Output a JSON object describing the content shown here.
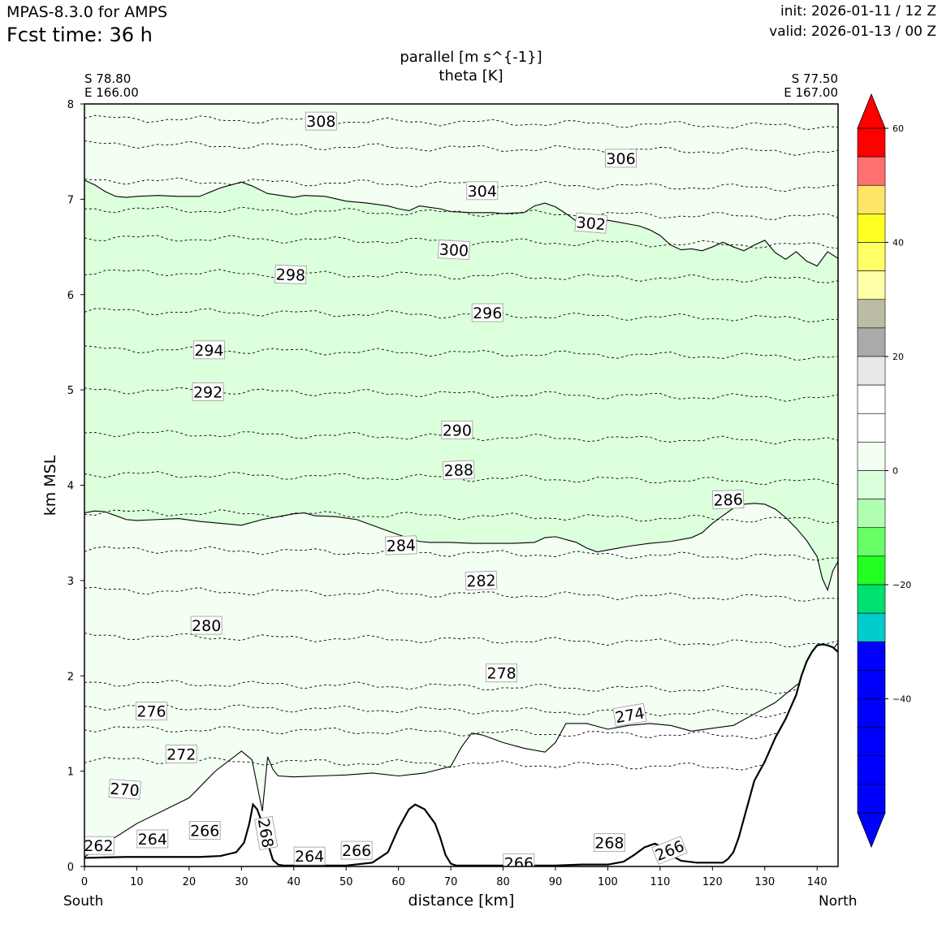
{
  "header": {
    "model": "MPAS-8.3.0 for AMPS",
    "fcst": "Fcst time:   36 h",
    "init": "init: 2026-01-11 / 12 Z",
    "valid": "valid: 2026-01-13 / 00 Z"
  },
  "corners": {
    "left_lat": "S 78.80",
    "left_lon": "E 166.00",
    "right_lat": "S 77.50",
    "right_lon": "E 167.00"
  },
  "chart_data": {
    "type": "contour",
    "title": "parallel [m s^{-1}]",
    "subtitle": "theta [K]",
    "xlabel": "distance [km]",
    "ylabel": "km MSL",
    "xlim": [
      0,
      144
    ],
    "ylim": [
      0,
      8
    ],
    "x_ticks": [
      "0",
      "10",
      "20",
      "30",
      "40",
      "50",
      "60",
      "70",
      "80",
      "90",
      "100",
      "110",
      "120",
      "130",
      "140"
    ],
    "y_ticks": [
      "0",
      "1",
      "2",
      "3",
      "4",
      "5",
      "6",
      "7",
      "8"
    ],
    "x_end_labels": {
      "left": "South",
      "right": "North"
    },
    "colorbar": {
      "min": -60,
      "max": 60,
      "step": 5,
      "ticks": [
        "60",
        "40",
        "20",
        "0",
        "−20",
        "−40"
      ],
      "extend": "both",
      "colors": [
        "#0000ff",
        "#0000ff",
        "#0000ff",
        "#00cccc",
        "#00e070",
        "#22ff22",
        "#66ff66",
        "#b0ffb0",
        "#dcffdc",
        "#f2fff2",
        "#ffffff",
        "#ffffff",
        "#e8e8e8",
        "#aaaaaa",
        "#bcbca4",
        "#ffffaa",
        "#ffff66",
        "#ffff22",
        "#ffe566",
        "#ff7070",
        "#ff0000",
        "#ff0000"
      ]
    },
    "theta_contours": [
      {
        "label": "308",
        "y": 7.85
      },
      {
        "label": "306",
        "y": 7.58
      },
      {
        "label": "304",
        "y": 7.2
      },
      {
        "label": "302",
        "y": 6.9
      },
      {
        "label": "300",
        "y": 6.6
      },
      {
        "label": "298",
        "y": 6.24
      },
      {
        "label": "296",
        "y": 5.83
      },
      {
        "label": "294",
        "y": 5.43
      },
      {
        "label": "292",
        "y": 5.0
      },
      {
        "label": "290",
        "y": 4.55
      },
      {
        "label": "288",
        "y": 4.12
      },
      {
        "label": "286",
        "y": 3.72
      },
      {
        "label": "284",
        "y": 3.33
      },
      {
        "label": "282",
        "y": 2.9
      },
      {
        "label": "280",
        "y": 2.42
      },
      {
        "label": "278",
        "y": 1.93
      },
      {
        "label": "276",
        "y": 1.68
      },
      {
        "label": "274",
        "y": 1.45
      },
      {
        "label": "272",
        "y": 1.12
      }
    ],
    "theta_labels": [
      {
        "text": "308",
        "x": 45.2,
        "y": 7.82,
        "angle": 0
      },
      {
        "text": "306",
        "x": 102.5,
        "y": 7.43,
        "angle": 0
      },
      {
        "text": "304",
        "x": 76.0,
        "y": 7.09,
        "angle": 0
      },
      {
        "text": "302",
        "x": 96.8,
        "y": 6.75,
        "angle": 5
      },
      {
        "text": "300",
        "x": 70.6,
        "y": 6.47,
        "angle": 3
      },
      {
        "text": "298",
        "x": 39.4,
        "y": 6.21,
        "angle": 2
      },
      {
        "text": "296",
        "x": 77.0,
        "y": 5.81,
        "angle": 0
      },
      {
        "text": "294",
        "x": 23.8,
        "y": 5.42,
        "angle": 0
      },
      {
        "text": "292",
        "x": 23.6,
        "y": 4.98,
        "angle": 0
      },
      {
        "text": "290",
        "x": 71.2,
        "y": 4.58,
        "angle": 0
      },
      {
        "text": "288",
        "x": 71.5,
        "y": 4.16,
        "angle": -2
      },
      {
        "text": "286",
        "x": 123.0,
        "y": 3.85,
        "angle": -2
      },
      {
        "text": "284",
        "x": 60.5,
        "y": 3.37,
        "angle": -2
      },
      {
        "text": "282",
        "x": 75.8,
        "y": 3.0,
        "angle": -2
      },
      {
        "text": "280",
        "x": 23.3,
        "y": 2.53,
        "angle": 0
      },
      {
        "text": "278",
        "x": 79.7,
        "y": 2.03,
        "angle": 0
      },
      {
        "text": "276",
        "x": 12.8,
        "y": 1.63,
        "angle": 0
      },
      {
        "text": "274",
        "x": 104.2,
        "y": 1.59,
        "angle": -10
      },
      {
        "text": "272",
        "x": 18.5,
        "y": 1.18,
        "angle": 0
      },
      {
        "text": "270",
        "x": 7.7,
        "y": 0.81,
        "angle": 4
      },
      {
        "text": "266",
        "x": 23.0,
        "y": 0.38,
        "angle": 0
      },
      {
        "text": "264",
        "x": 13.0,
        "y": 0.29,
        "angle": 0
      },
      {
        "text": "262",
        "x": 2.7,
        "y": 0.22,
        "angle": 0
      },
      {
        "text": "268",
        "x": 34.7,
        "y": 0.35,
        "angle": 80
      },
      {
        "text": "264",
        "x": 43.0,
        "y": 0.11,
        "angle": 0
      },
      {
        "text": "266",
        "x": 52.0,
        "y": 0.17,
        "angle": 0
      },
      {
        "text": "266",
        "x": 83.0,
        "y": 0.04,
        "angle": 0
      },
      {
        "text": "268",
        "x": 100.3,
        "y": 0.25,
        "angle": 0
      },
      {
        "text": "266",
        "x": 111.8,
        "y": 0.17,
        "angle": -22
      }
    ],
    "terrain": {
      "x": [
        0,
        8,
        15,
        22,
        26,
        29,
        30.5,
        31.5,
        32.2,
        33,
        34,
        35,
        36,
        37,
        38,
        40,
        45,
        50,
        55,
        58,
        60,
        62,
        63.2,
        65,
        67,
        68,
        69,
        70,
        71,
        75,
        80,
        85,
        90,
        95,
        100,
        103,
        105,
        107,
        109,
        110.5,
        112,
        114,
        117,
        120,
        122,
        123,
        124,
        125,
        126,
        127,
        128,
        130,
        132,
        134,
        136,
        137,
        138,
        139,
        140,
        141,
        142,
        143,
        144
      ],
      "y": [
        0.09,
        0.1,
        0.1,
        0.1,
        0.11,
        0.15,
        0.25,
        0.45,
        0.65,
        0.6,
        0.45,
        0.25,
        0.07,
        0.02,
        0.01,
        0.01,
        0.01,
        0.01,
        0.04,
        0.15,
        0.4,
        0.6,
        0.65,
        0.6,
        0.45,
        0.3,
        0.12,
        0.03,
        0.01,
        0.01,
        0.01,
        0.01,
        0.01,
        0.02,
        0.02,
        0.05,
        0.12,
        0.2,
        0.24,
        0.2,
        0.12,
        0.06,
        0.04,
        0.04,
        0.04,
        0.08,
        0.15,
        0.3,
        0.5,
        0.7,
        0.9,
        1.1,
        1.35,
        1.55,
        1.8,
        2.0,
        2.15,
        2.25,
        2.32,
        2.33,
        2.32,
        2.3,
        2.25
      ]
    },
    "wind_contour_m10_upper": {
      "x": [
        0,
        2,
        4,
        6,
        8,
        10,
        14,
        18,
        22,
        26,
        30,
        32,
        35,
        40,
        42,
        46,
        50,
        54,
        58,
        60,
        62,
        64,
        68,
        70,
        74,
        78,
        80,
        84,
        86,
        88,
        90,
        92,
        94,
        96,
        98,
        100,
        104,
        106,
        108,
        110,
        112,
        114,
        116,
        118,
        120,
        122,
        124,
        126,
        128,
        130,
        132,
        134,
        136,
        138,
        140,
        142,
        144
      ],
      "y": [
        7.2,
        7.15,
        7.08,
        7.03,
        7.02,
        7.03,
        7.04,
        7.03,
        7.03,
        7.12,
        7.18,
        7.14,
        7.06,
        7.02,
        7.04,
        7.03,
        6.98,
        6.96,
        6.93,
        6.9,
        6.88,
        6.93,
        6.9,
        6.87,
        6.86,
        6.86,
        6.85,
        6.86,
        6.93,
        6.96,
        6.92,
        6.85,
        6.77,
        6.74,
        6.73,
        6.78,
        6.74,
        6.72,
        6.68,
        6.62,
        6.52,
        6.47,
        6.48,
        6.46,
        6.5,
        6.55,
        6.5,
        6.46,
        6.52,
        6.57,
        6.44,
        6.37,
        6.45,
        6.35,
        6.3,
        6.45,
        6.38
      ]
    },
    "wind_contour_m10_lower": {
      "x": [
        0,
        2,
        4,
        6,
        8,
        10,
        14,
        18,
        22,
        26,
        30,
        34,
        38,
        40,
        42,
        44,
        48,
        52,
        56,
        60,
        64,
        66,
        70,
        74,
        78,
        82,
        86,
        88,
        90,
        94,
        96,
        98,
        100,
        104,
        108,
        112,
        116,
        118,
        120,
        122,
        124,
        126,
        128,
        130,
        132,
        134,
        136,
        138,
        140,
        141,
        142,
        143,
        144
      ],
      "y": [
        3.71,
        3.73,
        3.72,
        3.68,
        3.64,
        3.63,
        3.64,
        3.65,
        3.62,
        3.6,
        3.58,
        3.64,
        3.68,
        3.7,
        3.71,
        3.68,
        3.67,
        3.64,
        3.56,
        3.48,
        3.41,
        3.4,
        3.4,
        3.39,
        3.39,
        3.39,
        3.4,
        3.45,
        3.46,
        3.4,
        3.34,
        3.3,
        3.32,
        3.36,
        3.39,
        3.41,
        3.45,
        3.5,
        3.6,
        3.68,
        3.76,
        3.8,
        3.81,
        3.8,
        3.75,
        3.66,
        3.55,
        3.42,
        3.25,
        3.02,
        2.9,
        3.1,
        3.2
      ]
    },
    "wind_contour_0": {
      "x": [
        0,
        10,
        20,
        25,
        30,
        32,
        34,
        35,
        36,
        37,
        40,
        45,
        50,
        55,
        60,
        65,
        70,
        72,
        74,
        76,
        80,
        84,
        88,
        90,
        92,
        96,
        100,
        104,
        108,
        112,
        116,
        120,
        124,
        128,
        132,
        136,
        140,
        142,
        144
      ],
      "y": [
        0.1,
        0.45,
        0.72,
        1.0,
        1.21,
        1.12,
        0.58,
        1.15,
        1.02,
        0.95,
        0.94,
        0.95,
        0.96,
        0.98,
        0.95,
        0.98,
        1.05,
        1.25,
        1.4,
        1.38,
        1.3,
        1.24,
        1.2,
        1.3,
        1.5,
        1.5,
        1.44,
        1.48,
        1.5,
        1.48,
        1.42,
        1.45,
        1.48,
        1.6,
        1.72,
        1.9,
        2.05,
        2.2,
        2.35
      ]
    }
  }
}
